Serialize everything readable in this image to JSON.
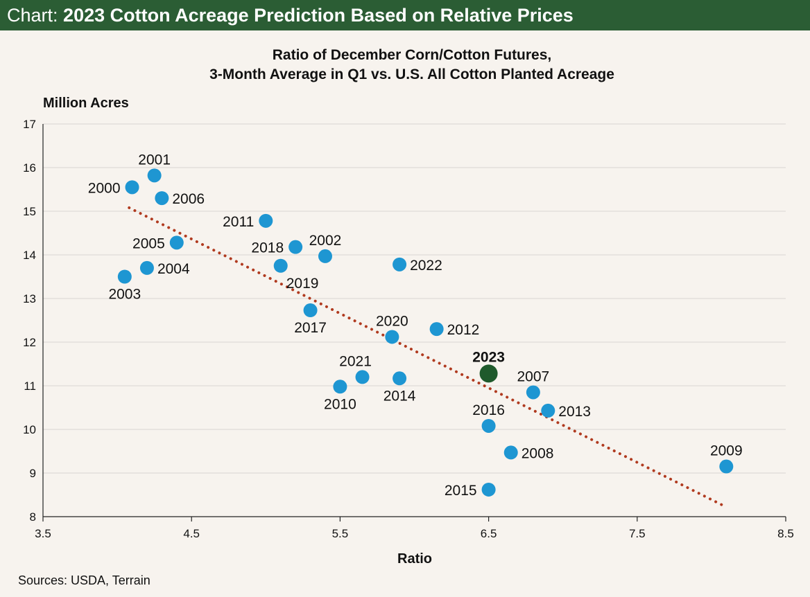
{
  "header": {
    "prefix": "Chart:",
    "title": "2023 Cotton Acreage Prediction Based on Relative Prices"
  },
  "source": "Sources: USDA, Terrain",
  "colors": {
    "header_bg": "#2b5d34",
    "point": "#1e96d2",
    "highlight": "#1f5a2c",
    "trend": "#b03a1f",
    "grid": "#d9d6d2",
    "background": "#f7f3ee"
  },
  "chart_data": {
    "type": "scatter",
    "title": "Ratio of December Corn/Cotton Futures,",
    "subtitle": "3-Month Average in Q1 vs. U.S. All Cotton Planted Acreage",
    "xlabel": "Ratio",
    "ylabel": "Million Acres",
    "xlim": [
      3.5,
      8.5
    ],
    "ylim": [
      8,
      17
    ],
    "xticks": [
      "3.5",
      "4.5",
      "5.5",
      "6.5",
      "7.5",
      "8.5"
    ],
    "yticks": [
      "8",
      "9",
      "10",
      "11",
      "12",
      "13",
      "14",
      "15",
      "16",
      "17"
    ],
    "grid": "horizontal",
    "points": [
      {
        "label": "2000",
        "x": 4.1,
        "y": 15.55,
        "pos": "left"
      },
      {
        "label": "2001",
        "x": 4.25,
        "y": 15.82,
        "pos": "top"
      },
      {
        "label": "2006",
        "x": 4.3,
        "y": 15.3,
        "pos": "right"
      },
      {
        "label": "2005",
        "x": 4.4,
        "y": 14.28,
        "pos": "left"
      },
      {
        "label": "2004",
        "x": 4.2,
        "y": 13.7,
        "pos": "right"
      },
      {
        "label": "2003",
        "x": 4.05,
        "y": 13.5,
        "pos": "bottom"
      },
      {
        "label": "2011",
        "x": 5.0,
        "y": 14.78,
        "pos": "left"
      },
      {
        "label": "2018",
        "x": 5.2,
        "y": 14.18,
        "pos": "left"
      },
      {
        "label": "2002",
        "x": 5.4,
        "y": 13.97,
        "pos": "top"
      },
      {
        "label": "2019",
        "x": 5.1,
        "y": 13.75,
        "pos": "bottomright"
      },
      {
        "label": "2022",
        "x": 5.9,
        "y": 13.78,
        "pos": "right"
      },
      {
        "label": "2017",
        "x": 5.3,
        "y": 12.73,
        "pos": "bottom"
      },
      {
        "label": "2020",
        "x": 5.85,
        "y": 12.12,
        "pos": "top"
      },
      {
        "label": "2012",
        "x": 6.15,
        "y": 12.3,
        "pos": "right"
      },
      {
        "label": "2021",
        "x": 5.65,
        "y": 11.2,
        "pos": "topleft"
      },
      {
        "label": "2010",
        "x": 5.5,
        "y": 10.98,
        "pos": "bottom"
      },
      {
        "label": "2014",
        "x": 5.9,
        "y": 11.17,
        "pos": "bottom"
      },
      {
        "label": "2023",
        "x": 6.5,
        "y": 11.28,
        "pos": "top",
        "highlight": true
      },
      {
        "label": "2007",
        "x": 6.8,
        "y": 10.85,
        "pos": "top"
      },
      {
        "label": "2013",
        "x": 6.9,
        "y": 10.43,
        "pos": "right"
      },
      {
        "label": "2016",
        "x": 6.5,
        "y": 10.08,
        "pos": "top"
      },
      {
        "label": "2008",
        "x": 6.65,
        "y": 9.47,
        "pos": "right"
      },
      {
        "label": "2015",
        "x": 6.5,
        "y": 8.62,
        "pos": "left"
      },
      {
        "label": "2009",
        "x": 8.1,
        "y": 9.15,
        "pos": "top"
      }
    ],
    "trendline": {
      "x": [
        4.08,
        8.1
      ],
      "y": [
        15.08,
        8.22
      ]
    }
  }
}
